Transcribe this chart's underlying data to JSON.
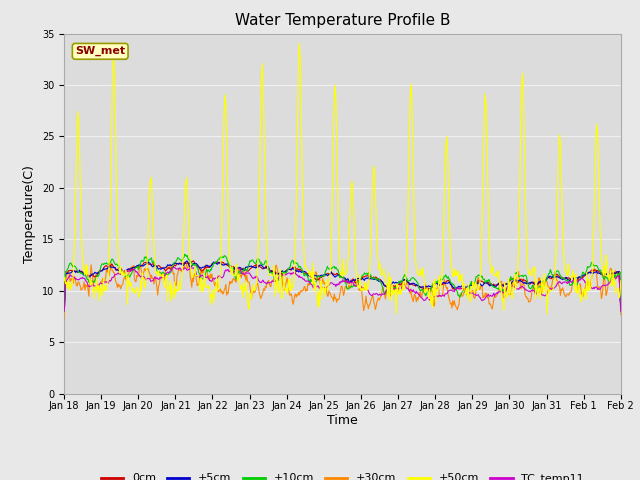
{
  "title": "Water Temperature Profile B",
  "xlabel": "Time",
  "ylabel": "Temperature(C)",
  "ylim": [
    0,
    35
  ],
  "annotation_text": "SW_met",
  "annotation_bg": "#FFFFC0",
  "annotation_fg": "#8B0000",
  "annotation_edge": "#999900",
  "fig_bg": "#E8E8E8",
  "plot_bg": "#DCDCDC",
  "series_colors": {
    "0cm": "#CC0000",
    "+5cm": "#0000CC",
    "+10cm": "#00CC00",
    "+30cm": "#FF8800",
    "+50cm": "#FFFF00",
    "TC_temp11": "#CC00CC"
  },
  "x_tick_labels": [
    "Jan 18",
    "Jan 19",
    "Jan 20",
    "Jan 21",
    "Jan 22",
    "Jan 23",
    "Jan 24",
    "Jan 25",
    "Jan 26",
    "Jan 27",
    "Jan 28",
    "Jan 29",
    "Jan 30",
    "Jan 31",
    "Feb 1",
    "Feb 2"
  ],
  "yticks": [
    0,
    5,
    10,
    15,
    20,
    25,
    30,
    35
  ],
  "grid_color": "#F0F0F0",
  "title_fontsize": 11,
  "tick_fontsize": 7,
  "label_fontsize": 9,
  "legend_fontsize": 8
}
